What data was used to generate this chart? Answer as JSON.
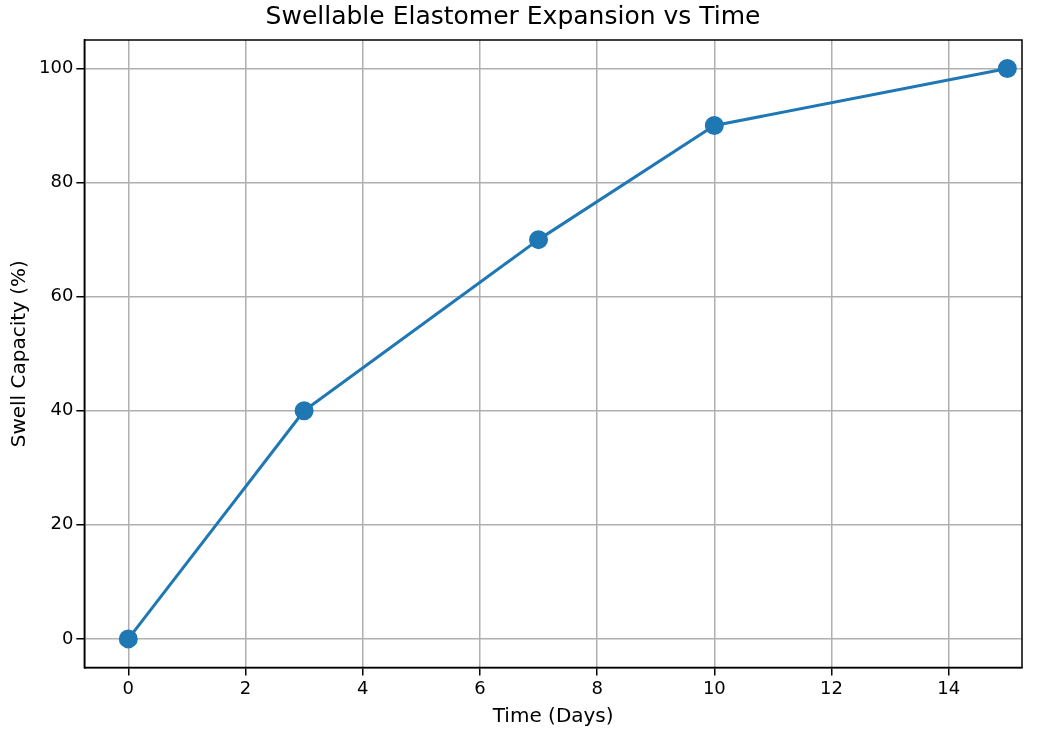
{
  "chart_data": {
    "type": "line",
    "title": "Swellable Elastomer Expansion vs Time",
    "xlabel": "Time (Days)",
    "ylabel": "Swell Capacity (%)",
    "x": [
      0,
      3,
      7,
      10,
      15
    ],
    "series": [
      {
        "color": "#1f77b4",
        "values": [
          0,
          40,
          70,
          90,
          100
        ]
      }
    ],
    "xlim": [
      -0.75,
      15.25
    ],
    "xticks": [
      0,
      2,
      4,
      6,
      8,
      10,
      12,
      14
    ],
    "ylim": [
      -5,
      105
    ],
    "yticks": [
      0,
      20,
      40,
      60,
      80,
      100
    ],
    "grid": true,
    "legend": false,
    "marker": "circle",
    "line_style": "solid"
  }
}
